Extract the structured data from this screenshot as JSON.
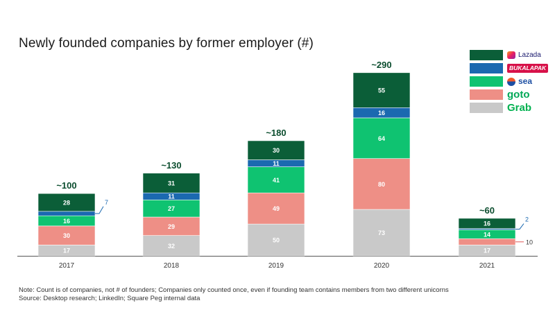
{
  "title": "Newly founded companies by former employer (#)",
  "notes": {
    "line1": "Note: Count is of companies, not # of founders; Companies only counted once, even if founding team contains members from two different unicorns",
    "line2": "Source: Desktop research; LinkedIn; Square Peg internal data"
  },
  "legend": [
    {
      "name": "Lazada",
      "color": "#0b5e38",
      "label": "Lazada",
      "icon": "lazada-logo"
    },
    {
      "name": "Bukalapak",
      "color": "#1b69b0",
      "label": "BUKALAPAK",
      "icon": "bukalapak-logo"
    },
    {
      "name": "Sea",
      "color": "#0fc371",
      "label": "sea",
      "icon": "sea-logo"
    },
    {
      "name": "GoTo",
      "color": "#ee8f86",
      "label": "goto",
      "icon": "goto-logo"
    },
    {
      "name": "Grab",
      "color": "#c9c9c9",
      "label": "Grab",
      "icon": "grab-logo"
    }
  ],
  "chart_data": {
    "type": "bar",
    "stacked": true,
    "title": "Newly founded companies by former employer (#)",
    "categories": [
      "2017",
      "2018",
      "2019",
      "2020",
      "2021"
    ],
    "series": [
      {
        "name": "Grab",
        "color": "#c9c9c9",
        "values": [
          17,
          32,
          50,
          73,
          17
        ]
      },
      {
        "name": "GoTo",
        "color": "#ee8f86",
        "values": [
          30,
          29,
          49,
          80,
          10
        ]
      },
      {
        "name": "Sea",
        "color": "#0fc371",
        "values": [
          16,
          27,
          41,
          64,
          14
        ]
      },
      {
        "name": "Bukalapak",
        "color": "#1b69b0",
        "values": [
          7,
          11,
          11,
          16,
          2
        ]
      },
      {
        "name": "Lazada",
        "color": "#0b5e38",
        "values": [
          28,
          31,
          30,
          55,
          16
        ]
      }
    ],
    "totals": [
      "~100",
      "~130",
      "~180",
      "~290",
      "~60"
    ],
    "callout_series": {
      "2017": [
        "Bukalapak"
      ],
      "2021": [
        "Bukalapak",
        "GoTo"
      ]
    },
    "xlabel": "",
    "ylabel": "",
    "ylim": [
      0,
      290
    ],
    "legend_position": "top-right"
  }
}
